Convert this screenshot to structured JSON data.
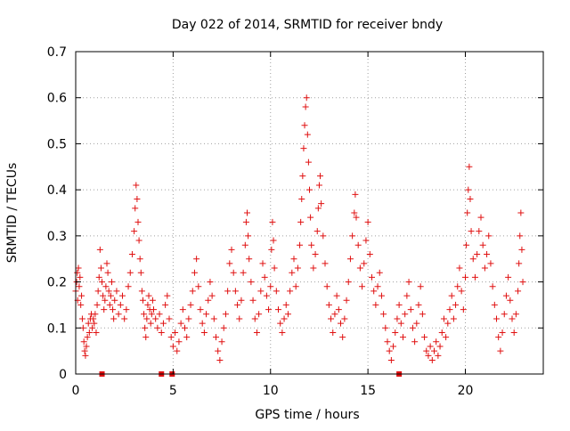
{
  "chart_data": {
    "type": "scatter",
    "title": "Day 022 of 2014, SRMTID for receiver bndy",
    "xlabel": "GPS time / hours",
    "ylabel": "SRMTID / TECUs",
    "xlim": [
      0,
      24
    ],
    "ylim": [
      0,
      0.7
    ],
    "xticks": [
      0,
      5,
      10,
      15,
      20
    ],
    "yticks": [
      0,
      0.1,
      0.2,
      0.3,
      0.4,
      0.5,
      0.6,
      0.7
    ],
    "xtick_labels": [
      "0",
      "5",
      "10",
      "15",
      "20"
    ],
    "ytick_labels": [
      "0",
      "0.1",
      "0.2",
      "0.3",
      "0.4",
      "0.5",
      "0.6",
      "0.7"
    ],
    "grid": true,
    "marker": "+",
    "color": "#e01010",
    "series": [
      {
        "name": "SRMTID",
        "points": [
          [
            0.0,
            0.18
          ],
          [
            0.05,
            0.2
          ],
          [
            0.08,
            0.22
          ],
          [
            0.1,
            0.16
          ],
          [
            0.14,
            0.23
          ],
          [
            0.18,
            0.19
          ],
          [
            0.22,
            0.21
          ],
          [
            0.26,
            0.15
          ],
          [
            0.3,
            0.17
          ],
          [
            0.34,
            0.12
          ],
          [
            0.38,
            0.1
          ],
          [
            0.42,
            0.07
          ],
          [
            0.46,
            0.05
          ],
          [
            0.5,
            0.04
          ],
          [
            0.55,
            0.06
          ],
          [
            0.6,
            0.08
          ],
          [
            0.65,
            0.11
          ],
          [
            0.7,
            0.09
          ],
          [
            0.75,
            0.12
          ],
          [
            0.8,
            0.13
          ],
          [
            0.85,
            0.1
          ],
          [
            0.9,
            0.12
          ],
          [
            0.95,
            0.11
          ],
          [
            1.0,
            0.13
          ],
          [
            1.05,
            0.09
          ],
          [
            1.1,
            0.15
          ],
          [
            1.15,
            0.18
          ],
          [
            1.2,
            0.21
          ],
          [
            1.25,
            0.27
          ],
          [
            1.3,
            0.23
          ],
          [
            1.35,
            0.2
          ],
          [
            1.4,
            0.17
          ],
          [
            1.45,
            0.14
          ],
          [
            1.5,
            0.16
          ],
          [
            1.55,
            0.19
          ],
          [
            1.6,
            0.24
          ],
          [
            1.65,
            0.22
          ],
          [
            1.7,
            0.18
          ],
          [
            1.75,
            0.15
          ],
          [
            1.8,
            0.17
          ],
          [
            1.85,
            0.2
          ],
          [
            1.9,
            0.14
          ],
          [
            1.95,
            0.12
          ],
          [
            2.0,
            0.16
          ],
          [
            2.1,
            0.18
          ],
          [
            2.2,
            0.13
          ],
          [
            2.3,
            0.15
          ],
          [
            2.4,
            0.17
          ],
          [
            2.5,
            0.12
          ],
          [
            2.6,
            0.14
          ],
          [
            2.7,
            0.19
          ],
          [
            2.8,
            0.22
          ],
          [
            2.9,
            0.26
          ],
          [
            3.0,
            0.31
          ],
          [
            3.05,
            0.36
          ],
          [
            3.1,
            0.41
          ],
          [
            3.15,
            0.38
          ],
          [
            3.2,
            0.33
          ],
          [
            3.25,
            0.29
          ],
          [
            3.3,
            0.25
          ],
          [
            3.35,
            0.22
          ],
          [
            3.4,
            0.18
          ],
          [
            3.45,
            0.16
          ],
          [
            3.5,
            0.13
          ],
          [
            3.55,
            0.1
          ],
          [
            3.6,
            0.08
          ],
          [
            3.65,
            0.12
          ],
          [
            3.7,
            0.15
          ],
          [
            3.75,
            0.17
          ],
          [
            3.8,
            0.14
          ],
          [
            3.85,
            0.11
          ],
          [
            3.9,
            0.13
          ],
          [
            3.95,
            0.16
          ],
          [
            4.0,
            0.14
          ],
          [
            4.1,
            0.12
          ],
          [
            4.2,
            0.1
          ],
          [
            4.3,
            0.13
          ],
          [
            4.4,
            0.09
          ],
          [
            4.5,
            0.11
          ],
          [
            4.6,
            0.15
          ],
          [
            4.7,
            0.17
          ],
          [
            4.8,
            0.12
          ],
          [
            4.9,
            0.08
          ],
          [
            5.0,
            0.06
          ],
          [
            5.1,
            0.09
          ],
          [
            5.2,
            0.05
          ],
          [
            5.3,
            0.07
          ],
          [
            5.4,
            0.11
          ],
          [
            5.5,
            0.14
          ],
          [
            5.6,
            0.1
          ],
          [
            5.7,
            0.08
          ],
          [
            5.8,
            0.12
          ],
          [
            5.9,
            0.15
          ],
          [
            6.0,
            0.18
          ],
          [
            6.1,
            0.22
          ],
          [
            6.2,
            0.25
          ],
          [
            6.3,
            0.19
          ],
          [
            6.4,
            0.14
          ],
          [
            6.5,
            0.11
          ],
          [
            6.6,
            0.09
          ],
          [
            6.7,
            0.13
          ],
          [
            6.8,
            0.16
          ],
          [
            6.9,
            0.2
          ],
          [
            7.0,
            0.17
          ],
          [
            7.1,
            0.12
          ],
          [
            7.2,
            0.08
          ],
          [
            7.3,
            0.05
          ],
          [
            7.4,
            0.03
          ],
          [
            7.5,
            0.07
          ],
          [
            7.6,
            0.1
          ],
          [
            7.7,
            0.13
          ],
          [
            7.8,
            0.18
          ],
          [
            7.9,
            0.24
          ],
          [
            8.0,
            0.27
          ],
          [
            8.1,
            0.22
          ],
          [
            8.2,
            0.18
          ],
          [
            8.3,
            0.15
          ],
          [
            8.4,
            0.12
          ],
          [
            8.5,
            0.16
          ],
          [
            8.6,
            0.22
          ],
          [
            8.7,
            0.28
          ],
          [
            8.75,
            0.33
          ],
          [
            8.8,
            0.35
          ],
          [
            8.85,
            0.3
          ],
          [
            8.9,
            0.25
          ],
          [
            9.0,
            0.2
          ],
          [
            9.1,
            0.16
          ],
          [
            9.2,
            0.12
          ],
          [
            9.3,
            0.09
          ],
          [
            9.4,
            0.13
          ],
          [
            9.5,
            0.18
          ],
          [
            9.6,
            0.24
          ],
          [
            9.7,
            0.21
          ],
          [
            9.8,
            0.17
          ],
          [
            9.9,
            0.14
          ],
          [
            10.0,
            0.19
          ],
          [
            10.05,
            0.27
          ],
          [
            10.1,
            0.33
          ],
          [
            10.15,
            0.29
          ],
          [
            10.2,
            0.23
          ],
          [
            10.3,
            0.18
          ],
          [
            10.4,
            0.14
          ],
          [
            10.5,
            0.11
          ],
          [
            10.6,
            0.09
          ],
          [
            10.7,
            0.12
          ],
          [
            10.8,
            0.15
          ],
          [
            10.9,
            0.13
          ],
          [
            11.0,
            0.18
          ],
          [
            11.1,
            0.22
          ],
          [
            11.2,
            0.25
          ],
          [
            11.3,
            0.19
          ],
          [
            11.4,
            0.23
          ],
          [
            11.5,
            0.28
          ],
          [
            11.55,
            0.33
          ],
          [
            11.6,
            0.38
          ],
          [
            11.65,
            0.43
          ],
          [
            11.7,
            0.49
          ],
          [
            11.75,
            0.54
          ],
          [
            11.8,
            0.58
          ],
          [
            11.85,
            0.6
          ],
          [
            11.9,
            0.52
          ],
          [
            11.95,
            0.46
          ],
          [
            12.0,
            0.4
          ],
          [
            12.05,
            0.34
          ],
          [
            12.1,
            0.28
          ],
          [
            12.2,
            0.23
          ],
          [
            12.3,
            0.26
          ],
          [
            12.4,
            0.31
          ],
          [
            12.45,
            0.36
          ],
          [
            12.5,
            0.41
          ],
          [
            12.55,
            0.43
          ],
          [
            12.6,
            0.37
          ],
          [
            12.7,
            0.3
          ],
          [
            12.8,
            0.24
          ],
          [
            12.9,
            0.19
          ],
          [
            13.0,
            0.15
          ],
          [
            13.1,
            0.12
          ],
          [
            13.2,
            0.09
          ],
          [
            13.3,
            0.13
          ],
          [
            13.4,
            0.17
          ],
          [
            13.5,
            0.14
          ],
          [
            13.6,
            0.11
          ],
          [
            13.7,
            0.08
          ],
          [
            13.8,
            0.12
          ],
          [
            13.9,
            0.16
          ],
          [
            14.0,
            0.2
          ],
          [
            14.1,
            0.25
          ],
          [
            14.2,
            0.3
          ],
          [
            14.3,
            0.35
          ],
          [
            14.35,
            0.39
          ],
          [
            14.4,
            0.34
          ],
          [
            14.5,
            0.28
          ],
          [
            14.6,
            0.23
          ],
          [
            14.7,
            0.19
          ],
          [
            14.8,
            0.24
          ],
          [
            14.9,
            0.29
          ],
          [
            15.0,
            0.33
          ],
          [
            15.1,
            0.26
          ],
          [
            15.2,
            0.21
          ],
          [
            15.3,
            0.18
          ],
          [
            15.4,
            0.15
          ],
          [
            15.5,
            0.19
          ],
          [
            15.6,
            0.22
          ],
          [
            15.7,
            0.17
          ],
          [
            15.8,
            0.13
          ],
          [
            15.9,
            0.1
          ],
          [
            16.0,
            0.07
          ],
          [
            16.1,
            0.05
          ],
          [
            16.2,
            0.03
          ],
          [
            16.3,
            0.06
          ],
          [
            16.4,
            0.09
          ],
          [
            16.5,
            0.12
          ],
          [
            16.6,
            0.15
          ],
          [
            16.7,
            0.11
          ],
          [
            16.8,
            0.08
          ],
          [
            16.9,
            0.13
          ],
          [
            17.0,
            0.17
          ],
          [
            17.1,
            0.2
          ],
          [
            17.2,
            0.14
          ],
          [
            17.3,
            0.1
          ],
          [
            17.4,
            0.07
          ],
          [
            17.5,
            0.11
          ],
          [
            17.6,
            0.15
          ],
          [
            17.7,
            0.19
          ],
          [
            17.8,
            0.13
          ],
          [
            17.9,
            0.08
          ],
          [
            18.0,
            0.05
          ],
          [
            18.1,
            0.04
          ],
          [
            18.2,
            0.06
          ],
          [
            18.3,
            0.03
          ],
          [
            18.4,
            0.05
          ],
          [
            18.5,
            0.07
          ],
          [
            18.6,
            0.04
          ],
          [
            18.7,
            0.06
          ],
          [
            18.8,
            0.09
          ],
          [
            18.9,
            0.12
          ],
          [
            19.0,
            0.08
          ],
          [
            19.1,
            0.11
          ],
          [
            19.2,
            0.14
          ],
          [
            19.3,
            0.17
          ],
          [
            19.4,
            0.12
          ],
          [
            19.5,
            0.15
          ],
          [
            19.6,
            0.19
          ],
          [
            19.7,
            0.23
          ],
          [
            19.8,
            0.18
          ],
          [
            19.9,
            0.14
          ],
          [
            20.0,
            0.21
          ],
          [
            20.05,
            0.28
          ],
          [
            20.1,
            0.35
          ],
          [
            20.15,
            0.4
          ],
          [
            20.2,
            0.45
          ],
          [
            20.25,
            0.38
          ],
          [
            20.3,
            0.31
          ],
          [
            20.4,
            0.25
          ],
          [
            20.5,
            0.21
          ],
          [
            20.6,
            0.26
          ],
          [
            20.7,
            0.31
          ],
          [
            20.8,
            0.34
          ],
          [
            20.9,
            0.28
          ],
          [
            21.0,
            0.23
          ],
          [
            21.1,
            0.26
          ],
          [
            21.2,
            0.3
          ],
          [
            21.3,
            0.24
          ],
          [
            21.4,
            0.19
          ],
          [
            21.5,
            0.15
          ],
          [
            21.6,
            0.12
          ],
          [
            21.7,
            0.08
          ],
          [
            21.8,
            0.05
          ],
          [
            21.9,
            0.09
          ],
          [
            22.0,
            0.13
          ],
          [
            22.1,
            0.17
          ],
          [
            22.2,
            0.21
          ],
          [
            22.3,
            0.16
          ],
          [
            22.4,
            0.12
          ],
          [
            22.5,
            0.09
          ],
          [
            22.6,
            0.13
          ],
          [
            22.7,
            0.18
          ],
          [
            22.75,
            0.24
          ],
          [
            22.8,
            0.3
          ],
          [
            22.85,
            0.35
          ],
          [
            22.9,
            0.27
          ],
          [
            22.95,
            0.2
          ]
        ]
      }
    ],
    "zero_markers": [
      {
        "x": 1.35,
        "y": 0
      },
      {
        "x": 4.4,
        "y": 0
      },
      {
        "x": 4.95,
        "y": 0
      },
      {
        "x": 16.6,
        "y": 0
      }
    ]
  }
}
